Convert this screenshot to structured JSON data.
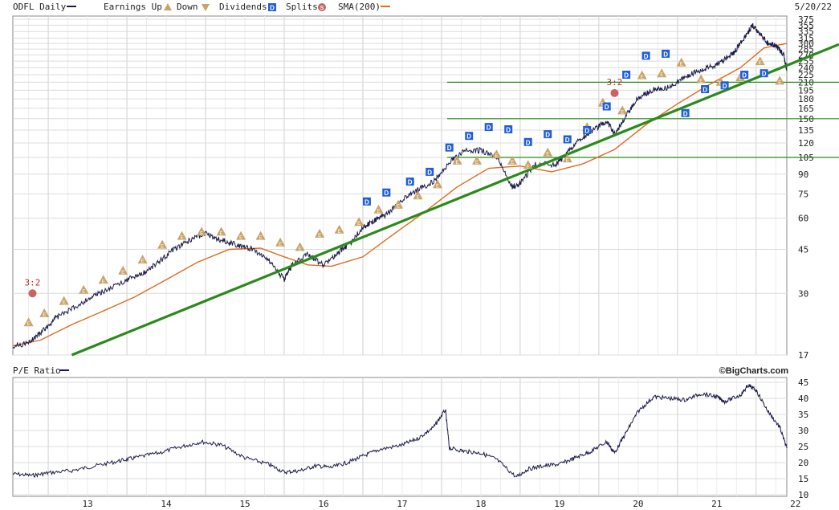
{
  "chart_data": [
    {
      "type": "line",
      "panel": "price",
      "symbol_label": "ODFL Daily",
      "date_label": "5/20/22",
      "legend": [
        {
          "label": "Earnings Up",
          "icon": "earnings-up-icon",
          "color": "#c8a468"
        },
        {
          "label": "Down",
          "icon": "earnings-down-icon",
          "color": "#c8a468"
        },
        {
          "label": "Dividends",
          "icon": "dividend-icon",
          "color": "#1f5fd6"
        },
        {
          "label": "Splits",
          "icon": "split-icon",
          "color": "#c86464"
        },
        {
          "label": "SMA(200)",
          "icon": "sma-swatch",
          "color": "#e06a1f"
        }
      ],
      "y_scale": "log",
      "ylim": [
        17,
        375
      ],
      "y_ticks": [
        "375",
        "355",
        "335",
        "315",
        "300",
        "285",
        "270",
        "255",
        "240",
        "225",
        "210",
        "195",
        "180",
        "165",
        "150",
        "135",
        "120",
        "105",
        "90",
        "75",
        "60",
        "45",
        "30",
        "17"
      ],
      "x_ticks": [
        "13",
        "14",
        "15",
        "16",
        "17",
        "18",
        "19",
        "20",
        "21",
        "22"
      ],
      "xlim": [
        2012.55,
        2022.39
      ],
      "series": [
        {
          "name": "ODFL Daily",
          "color": "#1b1b4a",
          "x": [
            2012.55,
            2012.75,
            2012.95,
            2013.1,
            2013.3,
            2013.55,
            2013.75,
            2014.0,
            2014.2,
            2014.4,
            2014.6,
            2014.85,
            2015.0,
            2015.2,
            2015.4,
            2015.6,
            2015.8,
            2016.0,
            2016.1,
            2016.3,
            2016.5,
            2016.7,
            2016.85,
            2017.0,
            2017.15,
            2017.3,
            2017.5,
            2017.7,
            2017.9,
            2018.1,
            2018.3,
            2018.5,
            2018.7,
            2018.9,
            2019.0,
            2019.2,
            2019.45,
            2019.6,
            2019.8,
            2019.95,
            2020.1,
            2020.2,
            2020.35,
            2020.5,
            2020.7,
            2020.9,
            2021.1,
            2021.3,
            2021.5,
            2021.7,
            2021.85,
            2021.95,
            2022.05,
            2022.15,
            2022.25,
            2022.35,
            2022.39
          ],
          "y": [
            18.5,
            19.0,
            21.5,
            24.0,
            26.0,
            29.0,
            31.0,
            34.0,
            36.0,
            40.0,
            45.0,
            50.0,
            52.0,
            49.0,
            47.0,
            45.0,
            41.0,
            34.0,
            39.0,
            43.0,
            39.0,
            44.0,
            48.0,
            55.0,
            59.0,
            62.0,
            71.0,
            78.0,
            84.0,
            100.0,
            112.0,
            112.0,
            106.0,
            80.0,
            83.0,
            99.0,
            98.0,
            110.0,
            127.0,
            136.0,
            147.0,
            130.0,
            155.0,
            182.0,
            196.0,
            200.0,
            222.0,
            235.0,
            247.0,
            272.0,
            315.0,
            355.0,
            328.0,
            300.0,
            295.0,
            270.0,
            235.0
          ]
        },
        {
          "name": "SMA(200)",
          "color": "#e06a1f",
          "x": [
            2012.55,
            2012.9,
            2013.3,
            2013.7,
            2014.1,
            2014.5,
            2014.9,
            2015.3,
            2015.7,
            2016.0,
            2016.3,
            2016.6,
            2017.0,
            2017.4,
            2017.8,
            2018.2,
            2018.6,
            2019.0,
            2019.4,
            2019.8,
            2020.2,
            2020.6,
            2021.0,
            2021.4,
            2021.8,
            2022.1,
            2022.39
          ],
          "y": [
            18.5,
            19.5,
            22.5,
            25.5,
            29.0,
            34.0,
            40.0,
            45.0,
            45.5,
            42.0,
            39.0,
            38.5,
            42.0,
            52.0,
            64.0,
            80.0,
            95.0,
            97.0,
            92.0,
            99.0,
            113.0,
            142.0,
            172.0,
            205.0,
            240.0,
            288.0,
            300.0
          ]
        }
      ],
      "trendlines": [
        {
          "type": "support",
          "color": "#2a8a1a",
          "from": {
            "x": 2013.3,
            "y": 17.0
          },
          "to": {
            "x": 2022.39,
            "y": 245.0
          }
        }
      ],
      "hlines": [
        210,
        150,
        105
      ],
      "splits": [
        {
          "x": 2012.8,
          "y": 30,
          "label": "3:2"
        },
        {
          "x": 2020.2,
          "y": 190,
          "label": "3:2"
        }
      ],
      "earnings_markers": [
        {
          "x": 2012.75,
          "y": 23
        },
        {
          "x": 2012.95,
          "y": 25
        },
        {
          "x": 2013.2,
          "y": 28
        },
        {
          "x": 2013.45,
          "y": 31
        },
        {
          "x": 2013.7,
          "y": 34
        },
        {
          "x": 2013.95,
          "y": 37
        },
        {
          "x": 2014.2,
          "y": 41
        },
        {
          "x": 2014.45,
          "y": 47
        },
        {
          "x": 2014.7,
          "y": 51
        },
        {
          "x": 2014.95,
          "y": 53
        },
        {
          "x": 2015.2,
          "y": 53
        },
        {
          "x": 2015.45,
          "y": 51
        },
        {
          "x": 2015.7,
          "y": 51
        },
        {
          "x": 2015.95,
          "y": 48
        },
        {
          "x": 2016.2,
          "y": 46
        },
        {
          "x": 2016.45,
          "y": 52
        },
        {
          "x": 2016.7,
          "y": 54
        },
        {
          "x": 2016.95,
          "y": 58
        },
        {
          "x": 2017.2,
          "y": 65
        },
        {
          "x": 2017.45,
          "y": 68
        },
        {
          "x": 2017.7,
          "y": 74
        },
        {
          "x": 2017.95,
          "y": 82
        },
        {
          "x": 2018.2,
          "y": 102
        },
        {
          "x": 2018.45,
          "y": 102
        },
        {
          "x": 2018.7,
          "y": 108
        },
        {
          "x": 2018.9,
          "y": 102
        },
        {
          "x": 2019.1,
          "y": 98
        },
        {
          "x": 2019.35,
          "y": 110
        },
        {
          "x": 2019.6,
          "y": 104
        },
        {
          "x": 2019.85,
          "y": 139
        },
        {
          "x": 2020.05,
          "y": 174
        },
        {
          "x": 2020.3,
          "y": 162
        },
        {
          "x": 2020.55,
          "y": 224
        },
        {
          "x": 2020.8,
          "y": 228
        },
        {
          "x": 2021.05,
          "y": 252
        },
        {
          "x": 2021.3,
          "y": 216
        },
        {
          "x": 2021.55,
          "y": 211
        },
        {
          "x": 2021.8,
          "y": 220
        },
        {
          "x": 2022.05,
          "y": 255
        },
        {
          "x": 2022.3,
          "y": 213
        }
      ],
      "dividend_markers": [
        {
          "x": 2017.05,
          "y": 70
        },
        {
          "x": 2017.3,
          "y": 76
        },
        {
          "x": 2017.6,
          "y": 84
        },
        {
          "x": 2017.85,
          "y": 92
        },
        {
          "x": 2018.1,
          "y": 115
        },
        {
          "x": 2018.35,
          "y": 128
        },
        {
          "x": 2018.6,
          "y": 139
        },
        {
          "x": 2018.85,
          "y": 136
        },
        {
          "x": 2019.1,
          "y": 121
        },
        {
          "x": 2019.35,
          "y": 130
        },
        {
          "x": 2019.6,
          "y": 124
        },
        {
          "x": 2019.85,
          "y": 135
        },
        {
          "x": 2020.1,
          "y": 168
        },
        {
          "x": 2020.35,
          "y": 225
        },
        {
          "x": 2020.6,
          "y": 268
        },
        {
          "x": 2020.85,
          "y": 273
        },
        {
          "x": 2021.1,
          "y": 158
        },
        {
          "x": 2021.35,
          "y": 197
        },
        {
          "x": 2021.6,
          "y": 204
        },
        {
          "x": 2021.85,
          "y": 225
        },
        {
          "x": 2022.1,
          "y": 228
        }
      ]
    },
    {
      "type": "line",
      "panel": "pe",
      "label": "P/E Ratio",
      "brand": "©BigCharts.com",
      "ylim": [
        10,
        45
      ],
      "y_ticks": [
        "45",
        "40",
        "35",
        "30",
        "25",
        "20",
        "15",
        "10"
      ],
      "series": [
        {
          "name": "P/E Ratio",
          "color": "#1b1b4a",
          "x": [
            2012.55,
            2012.8,
            2013.0,
            2013.3,
            2013.6,
            2013.9,
            2014.1,
            2014.4,
            2014.7,
            2014.95,
            2015.2,
            2015.5,
            2015.8,
            2016.0,
            2016.2,
            2016.4,
            2016.6,
            2016.8,
            2017.0,
            2017.2,
            2017.5,
            2017.7,
            2017.9,
            2018.05,
            2018.1,
            2018.3,
            2018.5,
            2018.7,
            2018.95,
            2019.1,
            2019.3,
            2019.5,
            2019.7,
            2019.9,
            2020.1,
            2020.2,
            2020.35,
            2020.5,
            2020.7,
            2020.9,
            2021.1,
            2021.3,
            2021.5,
            2021.6,
            2021.8,
            2021.9,
            2022.0,
            2022.15,
            2022.3,
            2022.39
          ],
          "y": [
            16.5,
            16.0,
            16.8,
            17.5,
            19.0,
            20.5,
            21.5,
            23.0,
            25.0,
            26.5,
            25.5,
            21.5,
            19.5,
            17.0,
            17.5,
            19.0,
            18.5,
            20.0,
            22.0,
            24.0,
            25.5,
            27.5,
            31.0,
            36.5,
            24.5,
            23.5,
            23.0,
            21.0,
            15.5,
            18.0,
            19.0,
            19.5,
            21.5,
            23.5,
            26.5,
            23.0,
            29.5,
            36.0,
            40.5,
            40.0,
            39.5,
            41.5,
            40.5,
            39.0,
            41.0,
            44.0,
            42.5,
            36.0,
            31.0,
            24.5
          ]
        }
      ]
    }
  ]
}
